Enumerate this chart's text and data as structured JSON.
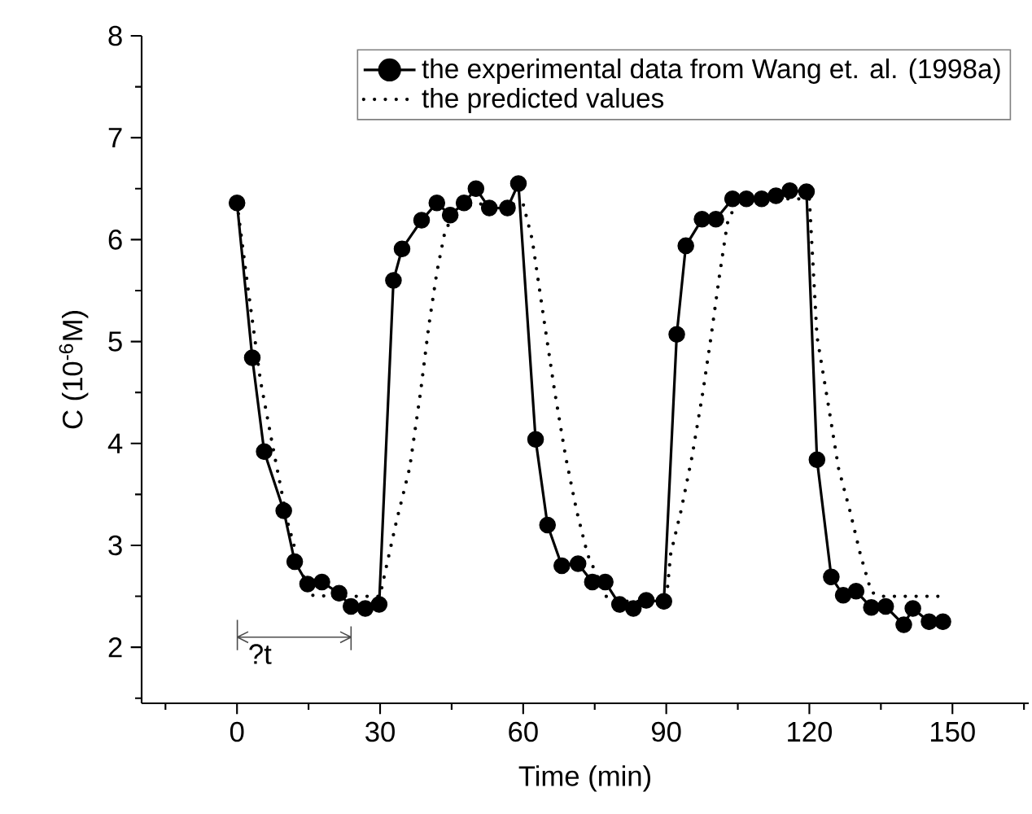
{
  "chart_data": {
    "type": "line",
    "xlabel": "Time (min)",
    "ylabel": "C (10$^{-6}$M)",
    "xlim": [
      -20,
      166
    ],
    "ylim": [
      1.45,
      8
    ],
    "xticks": [
      0,
      30,
      60,
      90,
      120,
      150
    ],
    "yticks": [
      2,
      3,
      4,
      5,
      6,
      7,
      8
    ],
    "legend": "top right",
    "grid": false,
    "series": [
      {
        "name": "the experimental data from Wang et. al. (1998a)",
        "color": "#000000",
        "marker": "circle",
        "line_style": "solid",
        "x": [
          0,
          3.2,
          5.7,
          9.8,
          12.1,
          14.8,
          17.8,
          21.4,
          23.9,
          26.9,
          29.8,
          32.8,
          34.6,
          38.7,
          41.9,
          44.7,
          47.6,
          50.1,
          52.9,
          56.7,
          59.0,
          62.6,
          65.1,
          68.1,
          71.5,
          74.5,
          77.2,
          80.2,
          83.1,
          85.8,
          89.5,
          92.2,
          94.1,
          97.5,
          100.4,
          103.9,
          106.8,
          110,
          113,
          115.9,
          119.4,
          121.6,
          124.6,
          127.1,
          129.8,
          133,
          136,
          139.8,
          141.7,
          145.1,
          148
        ],
        "values": [
          6.36,
          4.84,
          3.92,
          3.34,
          2.84,
          2.62,
          2.64,
          2.53,
          2.4,
          2.38,
          2.42,
          5.6,
          5.91,
          6.19,
          6.36,
          6.24,
          6.36,
          6.5,
          6.31,
          6.31,
          6.55,
          4.04,
          3.2,
          2.8,
          2.82,
          2.64,
          2.64,
          2.42,
          2.38,
          2.46,
          2.45,
          5.07,
          5.94,
          6.2,
          6.2,
          6.4,
          6.4,
          6.4,
          6.43,
          6.48,
          6.47,
          3.84,
          2.69,
          2.51,
          2.55,
          2.39,
          2.4,
          2.22,
          2.38,
          2.25,
          2.25
        ]
      },
      {
        "name": "the predicted values",
        "color": "#000000",
        "marker": "none",
        "line_style": "dotted",
        "x": [
          0,
          2,
          4.9,
          7.7,
          10.6,
          13.4,
          15.7,
          20,
          25,
          30,
          30.6,
          33.4,
          36.2,
          38.5,
          40.2,
          41.9,
          43.6,
          46,
          50,
          55,
          60,
          61.9,
          64.4,
          66.6,
          68.9,
          71.2,
          73.5,
          77.5,
          82,
          90,
          90.9,
          93.1,
          95.4,
          97.7,
          99.4,
          101.1,
          102.8,
          105,
          110,
          115,
          120,
          121.6,
          123.9,
          126.1,
          128.5,
          130.7,
          133,
          135,
          140,
          148
        ],
        "values": [
          6.36,
          5.63,
          4.62,
          3.92,
          3.23,
          2.75,
          2.51,
          2.5,
          2.5,
          2.5,
          2.64,
          3.23,
          3.76,
          4.51,
          5.15,
          5.68,
          6.08,
          6.3,
          6.35,
          6.35,
          6.35,
          6.0,
          5.2,
          4.51,
          3.87,
          3.34,
          2.91,
          2.49,
          2.45,
          2.45,
          2.91,
          3.34,
          3.87,
          4.51,
          5.05,
          5.63,
          6.16,
          6.4,
          6.4,
          6.4,
          6.4,
          5.05,
          4.4,
          3.76,
          3.34,
          2.91,
          2.54,
          2.5,
          2.5,
          2.5
        ]
      }
    ],
    "annotations": [
      "?t"
    ]
  }
}
